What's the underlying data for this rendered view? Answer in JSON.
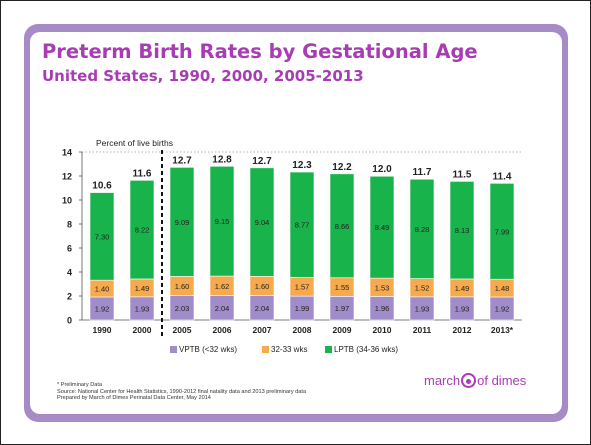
{
  "slide": {
    "title": "Preterm Birth Rates by Gestational Age",
    "subtitle": "United States, 1990, 2000, 2005-2013",
    "footnotes": [
      "* Preliminary Data",
      "Source: National Center for Health Statistics, 1990-2012 final natality data and 2013 preliminary data",
      "Prepared by March of Dimes Perinatal Data Center, May 2014"
    ],
    "logo_text": {
      "left": "march",
      "right": "of dimes"
    }
  },
  "chart_data": {
    "type": "bar",
    "stacked": true,
    "ylabel": "Percent of live births",
    "ylim": [
      0,
      14
    ],
    "yticks": [
      0,
      2,
      4,
      6,
      8,
      10,
      12,
      14
    ],
    "grid": false,
    "legend_position": "bottom",
    "categories": [
      "1990",
      "2000",
      "2005",
      "2006",
      "2007",
      "2008",
      "2009",
      "2010",
      "2011",
      "2012",
      "2013*"
    ],
    "series": [
      {
        "name": "VPTB (<32 wks)",
        "color": "#a08cc8",
        "values": [
          1.92,
          1.93,
          2.03,
          2.04,
          2.04,
          1.99,
          1.97,
          1.96,
          1.93,
          1.93,
          1.92
        ]
      },
      {
        "name": "32-33 wks",
        "color": "#f7aa4d",
        "values": [
          1.4,
          1.49,
          1.6,
          1.62,
          1.6,
          1.57,
          1.55,
          1.53,
          1.52,
          1.49,
          1.48
        ]
      },
      {
        "name": "LPTB (34-36 wks)",
        "color": "#18b34b",
        "values": [
          7.3,
          8.22,
          9.09,
          9.15,
          9.04,
          8.77,
          8.66,
          8.49,
          8.28,
          8.13,
          7.99
        ]
      }
    ],
    "totals": [
      10.6,
      11.6,
      12.7,
      12.8,
      12.7,
      12.3,
      12.2,
      12.0,
      11.7,
      11.5,
      11.4
    ],
    "break_after_index": 1
  }
}
